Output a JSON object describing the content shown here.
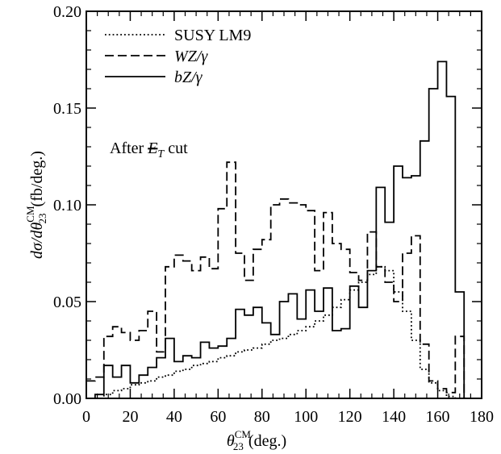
{
  "chart_data": {
    "type": "line",
    "xlabel": "θ23CM (deg.)",
    "xlabel_parts": {
      "symbol": "θ",
      "sub": "23",
      "sup": "CM",
      "unit": "(deg.)"
    },
    "ylabel": "dσ/dθ23CM (fb/deg.)",
    "ylabel_parts": {
      "pre": "dσ/dθ",
      "sub": "23",
      "sup": "CM",
      "unit": "(fb/deg.)"
    },
    "xlim": [
      0,
      180
    ],
    "ylim": [
      0,
      0.2
    ],
    "xticks": [
      "0",
      "20",
      "40",
      "60",
      "80",
      "100",
      "120",
      "140",
      "160",
      "180"
    ],
    "yticks": [
      "0.00",
      "0.05",
      "0.10",
      "0.15",
      "0.20"
    ],
    "legend_position": "top-left",
    "annotation": {
      "pre": "After ",
      "symbol": "E",
      "sub": "T",
      "post": " cut"
    },
    "bin_edges": [
      0,
      4,
      8,
      12,
      16,
      20,
      24,
      28,
      32,
      36,
      40,
      44,
      48,
      52,
      56,
      60,
      64,
      68,
      72,
      76,
      80,
      84,
      88,
      92,
      96,
      100,
      104,
      108,
      112,
      116,
      120,
      124,
      128,
      132,
      136,
      140,
      144,
      148,
      152,
      156,
      160,
      164,
      168,
      172,
      176,
      180
    ],
    "series": [
      {
        "name": "SUSY LM9",
        "style": "dotted",
        "values": [
          0.0,
          0.0,
          0.002,
          0.004,
          0.005,
          0.007,
          0.008,
          0.009,
          0.011,
          0.012,
          0.014,
          0.015,
          0.017,
          0.018,
          0.019,
          0.021,
          0.022,
          0.024,
          0.025,
          0.026,
          0.028,
          0.03,
          0.031,
          0.033,
          0.035,
          0.037,
          0.04,
          0.043,
          0.047,
          0.051,
          0.056,
          0.06,
          0.064,
          0.068,
          0.066,
          0.055,
          0.045,
          0.03,
          0.015,
          0.008,
          0.004,
          0.001,
          0.0,
          0.0,
          0.0
        ]
      },
      {
        "name": "WZ/γ",
        "style": "dashed",
        "values": [
          0.009,
          0.011,
          0.032,
          0.037,
          0.034,
          0.03,
          0.035,
          0.045,
          0.024,
          0.068,
          0.074,
          0.071,
          0.066,
          0.073,
          0.067,
          0.098,
          0.122,
          0.075,
          0.061,
          0.077,
          0.082,
          0.1,
          0.103,
          0.101,
          0.1,
          0.097,
          0.066,
          0.096,
          0.08,
          0.077,
          0.065,
          0.061,
          0.086,
          0.068,
          0.06,
          0.05,
          0.075,
          0.084,
          0.028,
          0.009,
          0.005,
          0.003,
          0.032,
          0.0,
          0.0
        ]
      },
      {
        "name": "bZ/γ",
        "style": "solid",
        "values": [
          0.0,
          0.002,
          0.017,
          0.011,
          0.017,
          0.008,
          0.012,
          0.016,
          0.021,
          0.031,
          0.019,
          0.022,
          0.021,
          0.029,
          0.026,
          0.027,
          0.031,
          0.046,
          0.043,
          0.047,
          0.039,
          0.033,
          0.05,
          0.054,
          0.041,
          0.056,
          0.045,
          0.057,
          0.035,
          0.036,
          0.058,
          0.047,
          0.066,
          0.109,
          0.091,
          0.12,
          0.114,
          0.115,
          0.133,
          0.16,
          0.174,
          0.156,
          0.055,
          0.0,
          0.0
        ]
      }
    ]
  }
}
